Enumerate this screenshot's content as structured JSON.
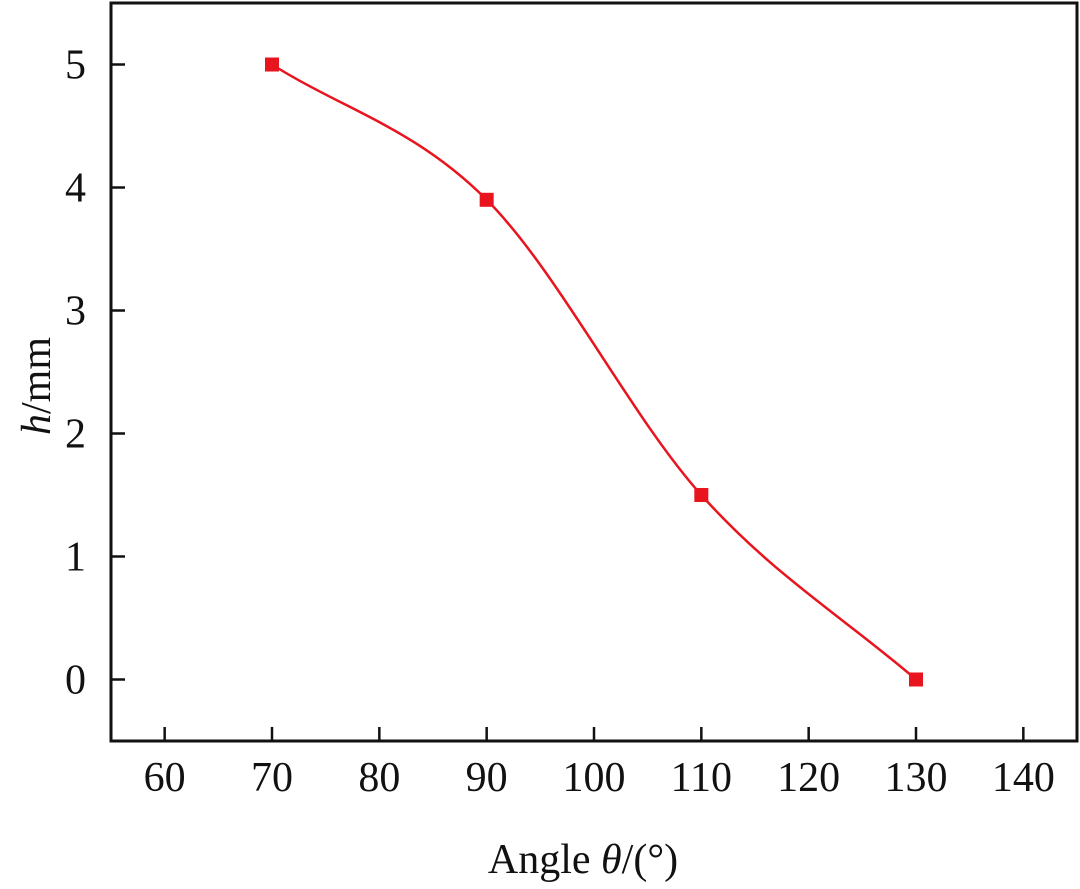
{
  "chart_data": {
    "type": "line",
    "title": "",
    "xlabel": "Angle θ/(°)",
    "xlabel_parts": {
      "prefix": "Angle ",
      "symbol": "θ",
      "suffix": "/(°)"
    },
    "ylabel": "h/mm",
    "ylabel_parts": {
      "symbol": "h",
      "suffix": "/mm"
    },
    "xlim": [
      55,
      145
    ],
    "ylim": [
      -0.5,
      5.5
    ],
    "xticks": [
      60,
      70,
      80,
      90,
      100,
      110,
      120,
      130,
      140
    ],
    "yticks": [
      0,
      1,
      2,
      3,
      4,
      5
    ],
    "grid": false,
    "legend": "none",
    "series": [
      {
        "x": [
          70,
          90,
          110,
          130
        ],
        "y": [
          5.0,
          3.9,
          1.5,
          0.0
        ],
        "color": "#e8141e",
        "marker": "square",
        "smooth": true
      }
    ]
  }
}
